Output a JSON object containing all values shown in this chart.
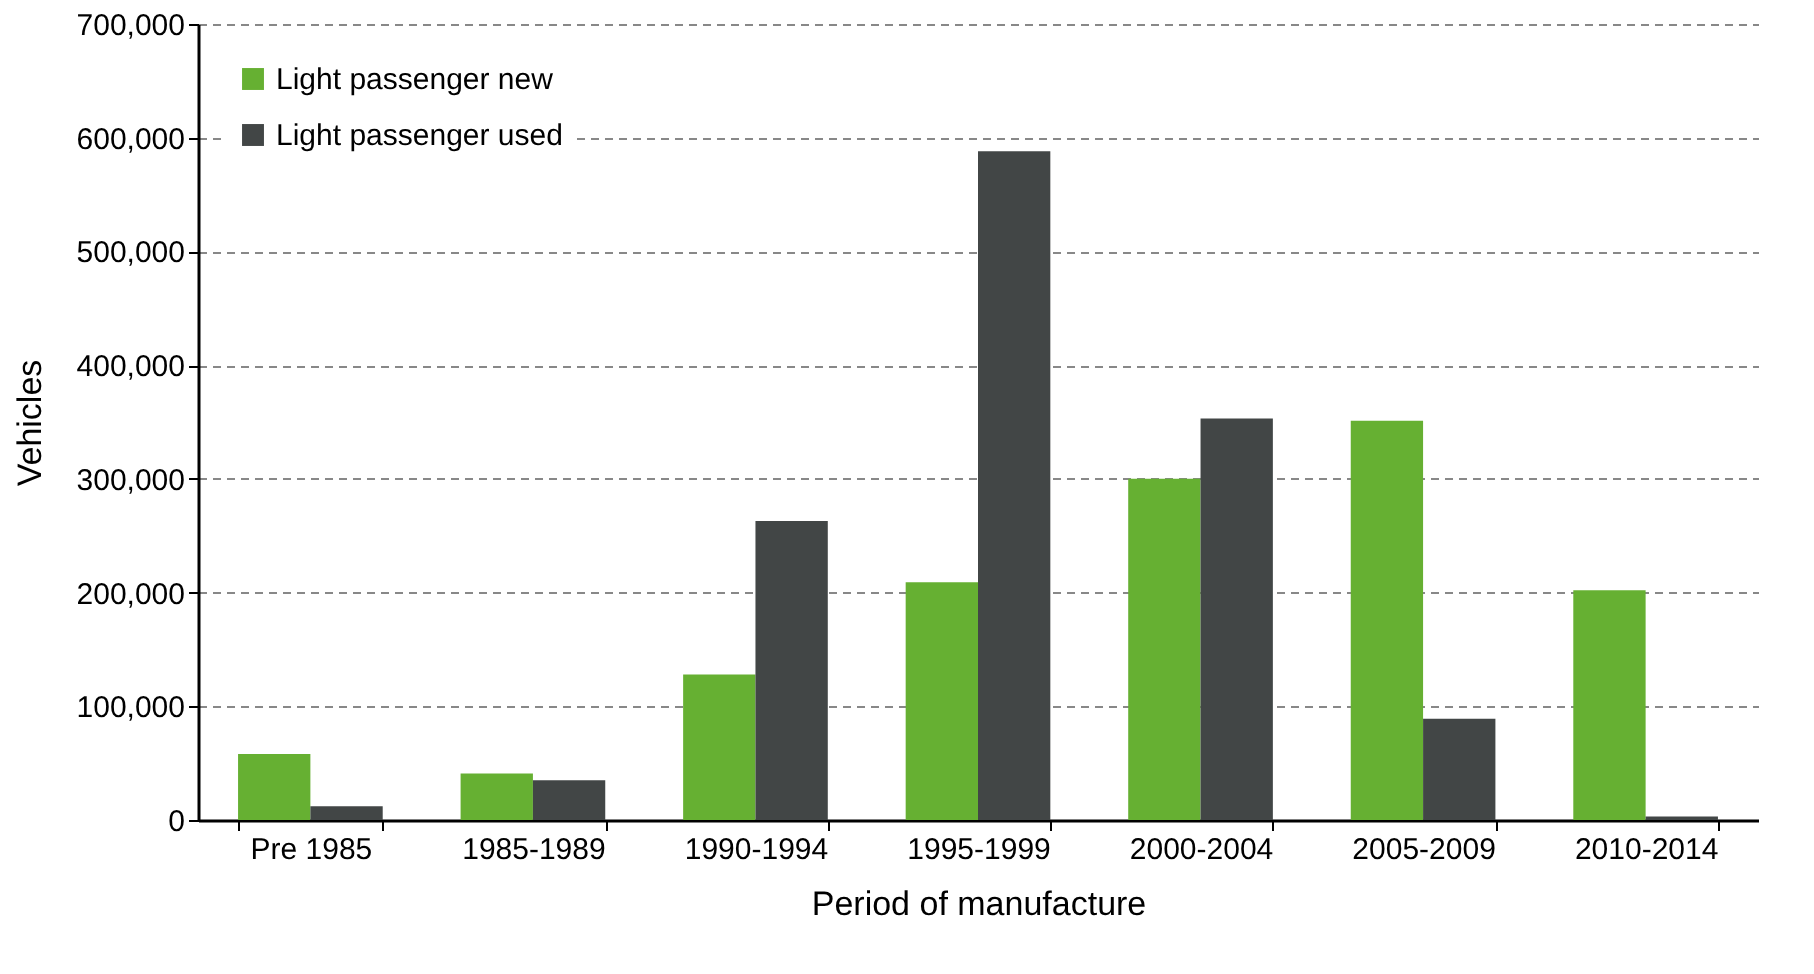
{
  "chart_data": {
    "type": "bar",
    "xlabel": "Period of manufacture",
    "ylabel": "Vehicles",
    "categories": [
      "Pre 1985",
      "1985-1989",
      "1990-1994",
      "1995-1999",
      "2000-2004",
      "2005-2009",
      "2010-2014"
    ],
    "series": [
      {
        "name": "Light passenger new",
        "color": "#66b032",
        "values": [
          58000,
          41000,
          128000,
          209000,
          300000,
          351000,
          202000
        ]
      },
      {
        "name": "Light passenger used",
        "color": "#424646",
        "values": [
          12000,
          35000,
          263000,
          588000,
          353000,
          89000,
          3000
        ]
      }
    ],
    "ylim": [
      0,
      700000
    ],
    "yticks": [
      {
        "value": 0,
        "label": "0"
      },
      {
        "value": 100000,
        "label": "100,000"
      },
      {
        "value": 200000,
        "label": "200,000"
      },
      {
        "value": 300000,
        "label": "300,000"
      },
      {
        "value": 400000,
        "label": "400,000"
      },
      {
        "value": 500000,
        "label": "500,000"
      },
      {
        "value": 600000,
        "label": "600,000"
      },
      {
        "value": 700000,
        "label": "700,000"
      }
    ],
    "grid": "y",
    "legend": "top left"
  }
}
